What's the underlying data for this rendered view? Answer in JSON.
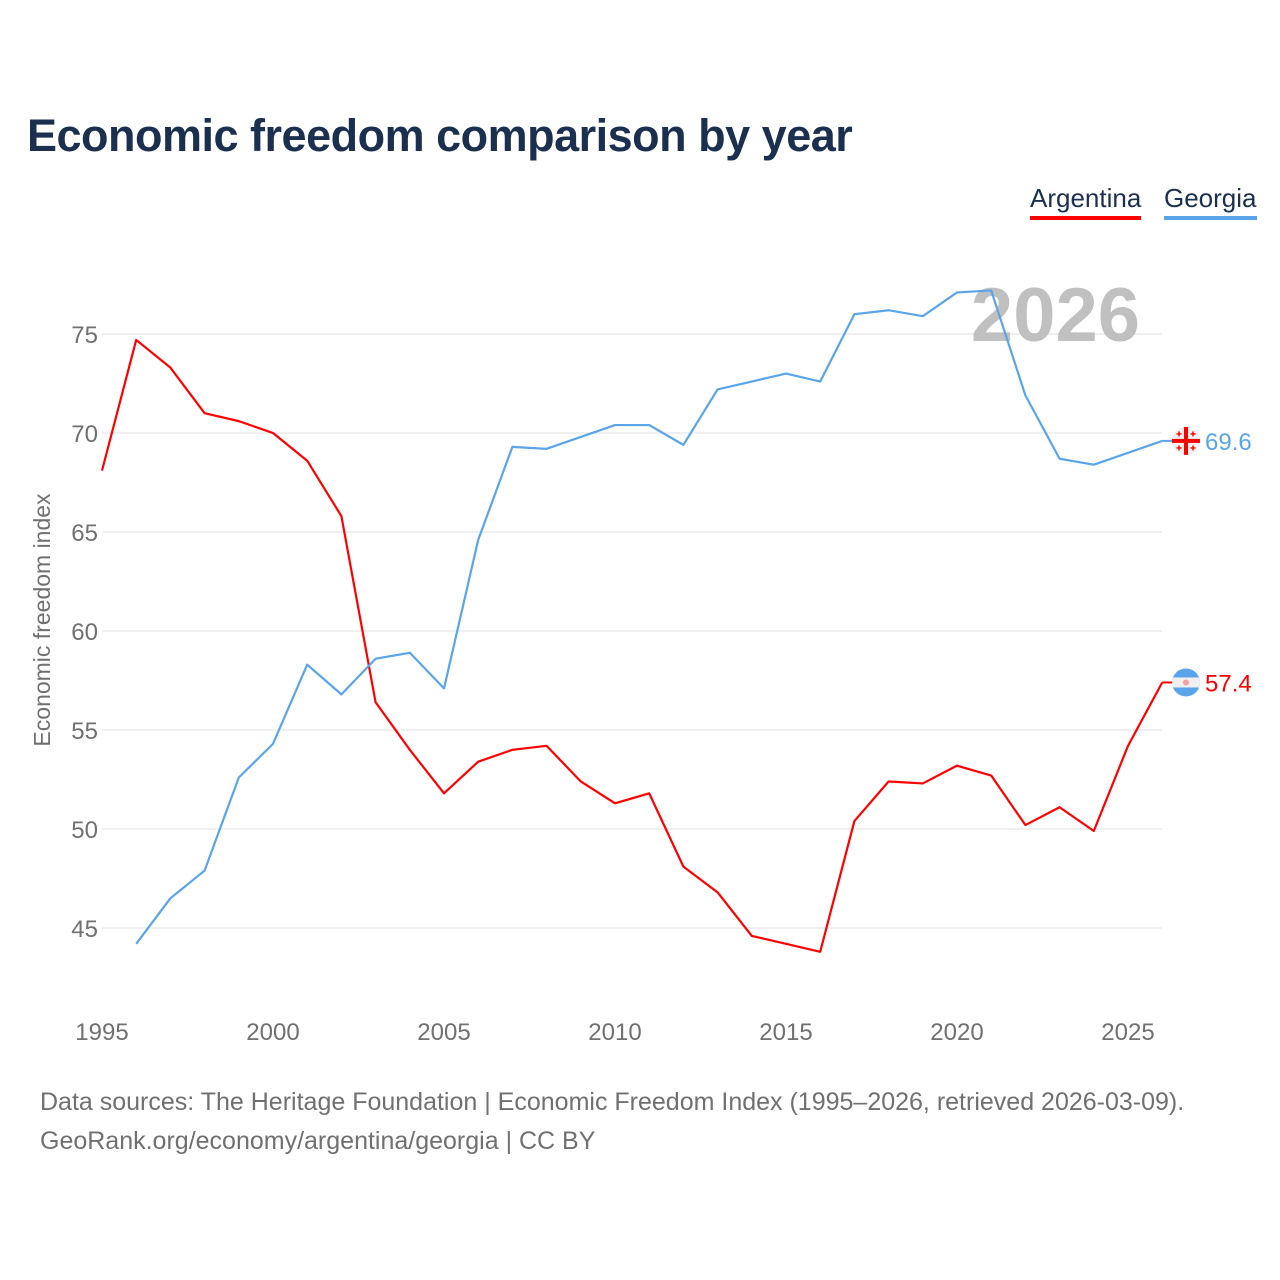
{
  "chart_data": {
    "type": "line",
    "title": "Economic freedom comparison by year",
    "xlabel": "",
    "ylabel": "Economic freedom index",
    "xlim": [
      1995,
      2026
    ],
    "ylim": [
      41,
      80
    ],
    "x_ticks": [
      "1995",
      "2000",
      "2005",
      "2010",
      "2015",
      "2020",
      "2025"
    ],
    "y_ticks": [
      "45",
      "50",
      "55",
      "60",
      "65",
      "70",
      "75"
    ],
    "year_watermark": "2026",
    "grid": true,
    "legend_position": "top-right",
    "series": [
      {
        "name": "Argentina",
        "color": "#ff0000",
        "end_label": "57.4",
        "flag": "argentina-flag",
        "x": [
          1995,
          1996,
          1997,
          1998,
          1999,
          2000,
          2001,
          2002,
          2003,
          2004,
          2005,
          2006,
          2007,
          2008,
          2009,
          2010,
          2011,
          2012,
          2013,
          2014,
          2015,
          2016,
          2017,
          2018,
          2019,
          2020,
          2021,
          2022,
          2023,
          2024,
          2025,
          2026
        ],
        "values": [
          68.1,
          74.7,
          73.3,
          71.0,
          70.6,
          70.0,
          68.6,
          65.8,
          56.4,
          54.0,
          51.8,
          53.4,
          54.0,
          54.2,
          52.4,
          51.3,
          51.8,
          48.1,
          46.8,
          44.6,
          44.2,
          43.8,
          50.4,
          52.4,
          52.3,
          53.2,
          52.7,
          50.2,
          51.1,
          49.9,
          54.2,
          57.4
        ]
      },
      {
        "name": "Georgia",
        "color": "#5aa5ea",
        "end_label": "69.6",
        "flag": "georgia-flag",
        "x": [
          1996,
          1997,
          1998,
          1999,
          2000,
          2001,
          2002,
          2003,
          2004,
          2005,
          2006,
          2007,
          2008,
          2009,
          2010,
          2011,
          2012,
          2013,
          2014,
          2015,
          2016,
          2017,
          2018,
          2019,
          2020,
          2021,
          2022,
          2023,
          2024,
          2025,
          2026
        ],
        "values": [
          44.2,
          46.5,
          47.9,
          52.6,
          54.3,
          58.3,
          56.8,
          58.6,
          58.9,
          57.1,
          64.6,
          69.3,
          69.2,
          69.8,
          70.4,
          70.4,
          69.4,
          72.2,
          72.6,
          73.0,
          72.6,
          76.0,
          76.2,
          75.9,
          77.1,
          77.2,
          71.9,
          68.7,
          68.4,
          69.0,
          69.6
        ]
      }
    ]
  },
  "footer": {
    "line1": "Data sources: The Heritage Foundation | Economic Freedom Index (1995–2026, retrieved 2026-03-09).",
    "line2": "GeoRank.org/economy/argentina/georgia | CC BY"
  }
}
